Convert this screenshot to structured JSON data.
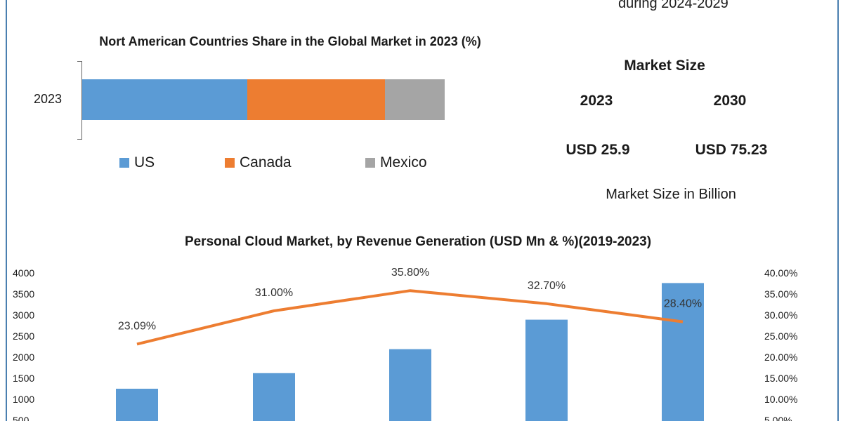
{
  "header": {
    "period_text": "during 2024-2029"
  },
  "market_size": {
    "title": "Market Size",
    "years": [
      "2023",
      "2030"
    ],
    "values": [
      "USD 25.9",
      "USD 75.23"
    ],
    "unit_note": "Market Size in Billion"
  },
  "colors": {
    "us": "#5b9bd5",
    "canada": "#ed7d31",
    "mexico": "#a5a5a5",
    "bar": "#5b9bd5",
    "line": "#ed7d31"
  },
  "chart_data": [
    {
      "type": "bar",
      "stacked": true,
      "orientation": "horizontal",
      "title": "Nort American Countries Share in the Global Market in 2023 (%)",
      "categories": [
        "2023"
      ],
      "series": [
        {
          "name": "US",
          "values": [
            45.5
          ]
        },
        {
          "name": "Canada",
          "values": [
            38
          ]
        },
        {
          "name": "Mexico",
          "values": [
            16.5
          ]
        }
      ],
      "legend_position": "bottom"
    },
    {
      "type": "bar",
      "title": "Personal Cloud Market, by Revenue Generation (USD Mn & %)(2019-2023)",
      "y_ticks": [
        "4000",
        "3500",
        "3000",
        "2500",
        "2000",
        "1500",
        "1000",
        "500"
      ],
      "y2_ticks": [
        "40.00%",
        "35.00%",
        "30.00%",
        "25.00%",
        "20.00%",
        "15.00%",
        "10.00%",
        "5.00%"
      ],
      "ylim": [
        0,
        4000
      ],
      "y2lim": [
        0,
        40
      ],
      "series": [
        {
          "type": "bar",
          "values": [
            1250,
            1620,
            2190,
            2890,
            3760
          ]
        },
        {
          "type": "line",
          "axis": "secondary",
          "values": [
            23.09,
            31.0,
            35.8,
            32.7,
            28.4
          ],
          "labels": [
            "23.09%",
            "31.00%",
            "35.80%",
            "32.70%",
            "28.40%"
          ]
        }
      ]
    }
  ]
}
